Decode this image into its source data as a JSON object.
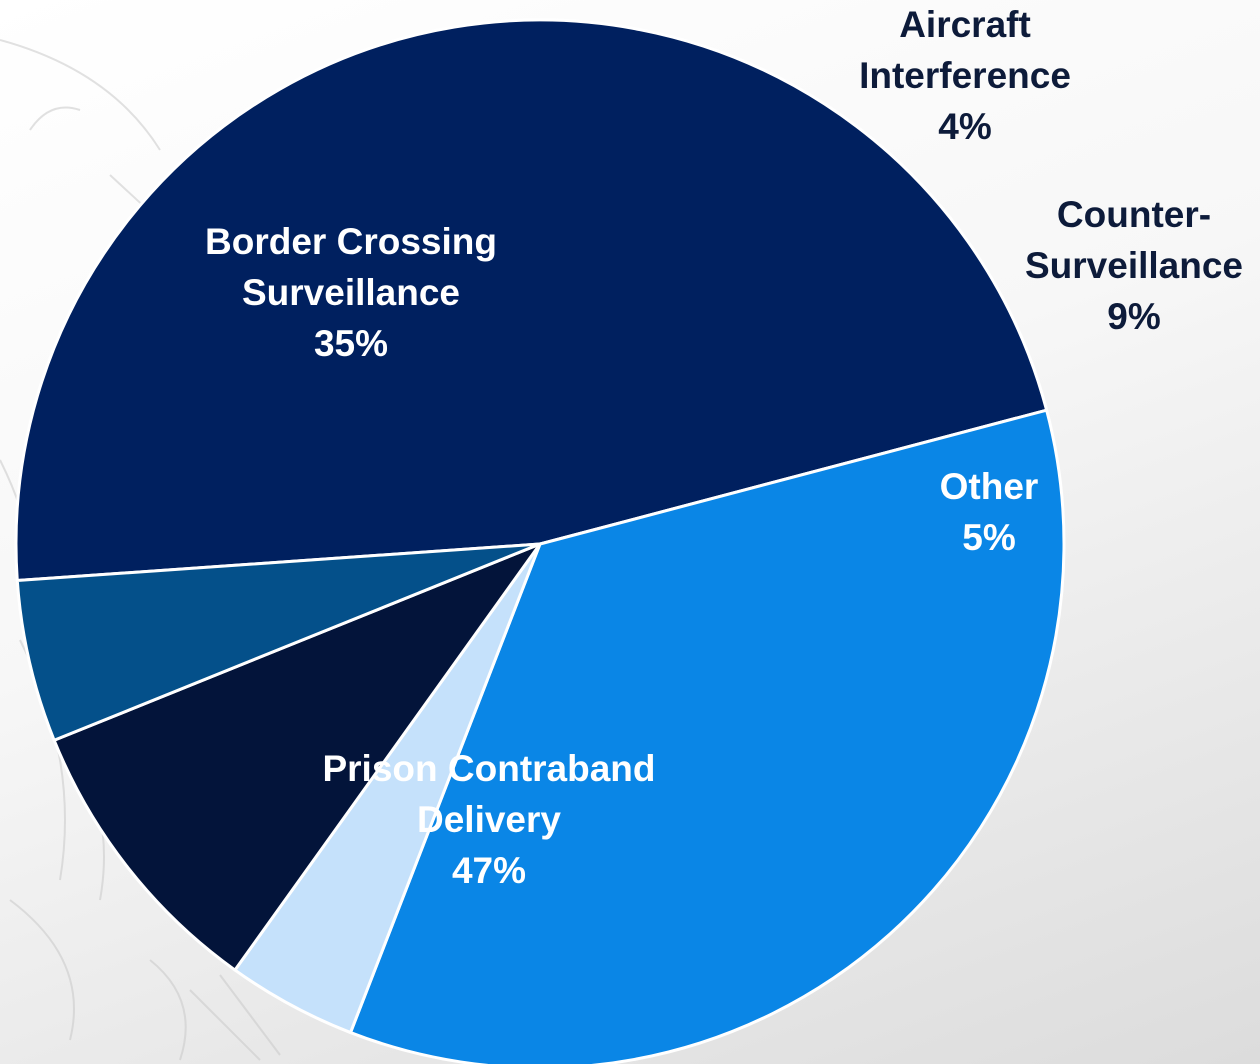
{
  "chart_data": {
    "type": "pie",
    "title": "",
    "slices": [
      {
        "label_lines": [
          "Prison Contraband",
          "Delivery"
        ],
        "value": 47,
        "value_label": "47%",
        "color": "#00205f",
        "label_color": "#ffffff"
      },
      {
        "label_lines": [
          "Border Crossing",
          "Surveillance"
        ],
        "value": 35,
        "value_label": "35%",
        "color": "#0a86e6",
        "label_color": "#ffffff"
      },
      {
        "label_lines": [
          "Aircraft",
          "Interference"
        ],
        "value": 4,
        "value_label": "4%",
        "color": "#c5e1fb",
        "label_color": "#0d1b3a"
      },
      {
        "label_lines": [
          "Counter-",
          "Surveillance"
        ],
        "value": 9,
        "value_label": "9%",
        "color": "#03143a",
        "label_color": "#0d1b3a"
      },
      {
        "label_lines": [
          "Other"
        ],
        "value": 5,
        "value_label": "5%",
        "color": "#04508a",
        "label_color": "#ffffff"
      }
    ],
    "legend": "none",
    "labels_position": "on slices / outside for small slices"
  }
}
